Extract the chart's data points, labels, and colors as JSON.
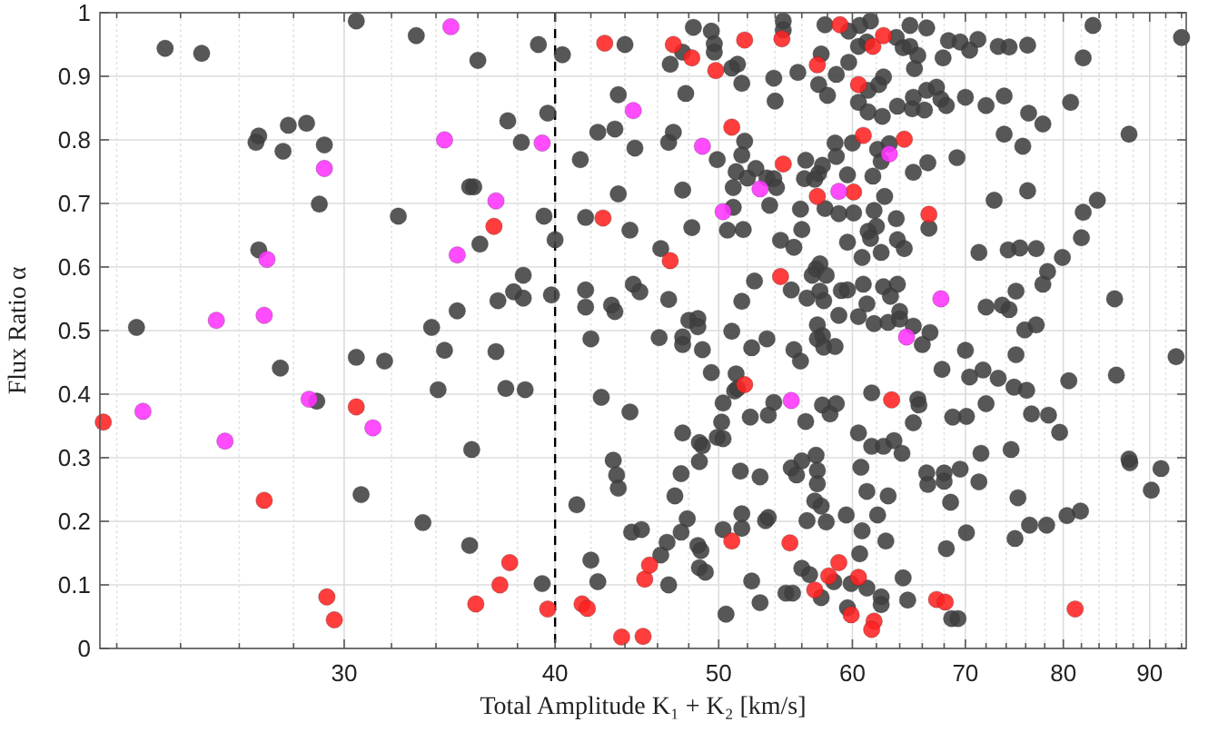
{
  "chart_data": {
    "type": "scatter",
    "xlabel": "Total Amplitude K₁ + K₂ [km/s]",
    "ylabel": "Flux Ratio α",
    "log": "x",
    "grid": true,
    "marker": "circle",
    "xlim": [
      21.5,
      94.6
    ],
    "ylim": [
      0,
      1
    ],
    "xticks": [
      {
        "value": 22,
        "label": null
      },
      {
        "value": 24,
        "label": null
      },
      {
        "value": 26,
        "label": null
      },
      {
        "value": 28,
        "label": null
      },
      30,
      {
        "value": 32,
        "label": null
      },
      {
        "value": 34,
        "label": null
      },
      {
        "value": 36,
        "label": null
      },
      {
        "value": 38,
        "label": null
      },
      40,
      {
        "value": 42,
        "label": null
      },
      {
        "value": 44,
        "label": null
      },
      {
        "value": 46,
        "label": null
      },
      {
        "value": 48,
        "label": null
      },
      50,
      {
        "value": 52,
        "label": null
      },
      {
        "value": 54,
        "label": null
      },
      {
        "value": 56,
        "label": null
      },
      {
        "value": 58,
        "label": null
      },
      60,
      {
        "value": 62,
        "label": null
      },
      {
        "value": 64,
        "label": null
      },
      {
        "value": 66,
        "label": null
      },
      {
        "value": 68,
        "label": null
      },
      70,
      {
        "value": 72,
        "label": null
      },
      {
        "value": 74,
        "label": null
      },
      {
        "value": 76,
        "label": null
      },
      {
        "value": 78,
        "label": null
      },
      80,
      {
        "value": 82,
        "label": null
      },
      {
        "value": 84,
        "label": null
      },
      {
        "value": 86,
        "label": null
      },
      {
        "value": 88,
        "label": null
      },
      90,
      {
        "value": 92,
        "label": null
      },
      {
        "value": 94,
        "label": null
      }
    ],
    "yticks": [
      0,
      0.1,
      0.2,
      0.3,
      0.4,
      0.5,
      0.6,
      0.7,
      0.8,
      0.9,
      1
    ],
    "ref_lines": [
      {
        "axis": "x",
        "value": 40,
        "line_style": "dashed",
        "color": "#000000"
      }
    ],
    "series": [
      {
        "color": "#404040",
        "x": [
          22.6,
          27.5,
          28.9,
          30.5,
          31.7,
          30.7,
          33.4,
          33.8,
          34.4,
          34.1,
          23.5,
          24.7,
          30.5,
          33.1,
          26.7,
          26.6,
          27.8,
          28.5,
          27.6,
          29.2,
          29.0,
          32.3,
          26.7,
          35.0,
          39.1,
          36.0,
          40.4,
          44.0,
          48.3,
          49.5,
          49.7,
          49.7,
          46.8,
          47.6,
          50.9,
          51.3,
          51.6,
          54.6,
          54.6,
          53.9,
          54.0,
          55.7,
          57.8,
          57.5,
          57.3,
          58.0,
          58.7,
          43.6,
          47.8,
          37.5,
          39.6,
          38.2,
          42.4,
          43.4,
          44.6,
          46.7,
          47.0,
          41.4,
          49.9,
          51.8,
          51.6,
          51.2,
          52.0,
          52.6,
          53.4,
          53.9,
          51.0,
          54.1,
          56.3,
          56.2,
          57.3,
          57.0,
          57.6,
          58.6,
          58.7,
          43.6,
          47.6,
          35.6,
          35.8,
          39.4,
          41.7,
          44.3,
          48.2,
          53.6,
          51.0,
          50.6,
          51.7,
          54.4,
          55.4,
          55.9,
          56.0,
          57.8,
          58.9,
          40.0,
          36.1,
          46.2,
          38.3,
          37.8,
          38.3,
          37.0,
          39.8,
          41.7,
          41.7,
          43.2,
          43.4,
          44.5,
          44.9,
          46.7,
          48.0,
          48.6,
          52.5,
          51.6,
          55.2,
          56.4,
          57.1,
          57.4,
          56.8,
          57.9,
          57.4,
          57.7,
          59.1,
          58.9,
          57.2,
          57.6,
          42.0,
          46.1,
          50.9,
          61.5,
          60.6,
          59.7,
          61.2,
          60.5,
          59.7,
          64.9,
          66.4,
          63.7,
          64.3,
          64.9,
          65.6,
          65.3,
          68.4,
          69.5,
          71.2,
          70.4,
          67.9,
          73.2,
          74.3,
          76.2,
          83.3,
          82.2,
          94.0,
          61.3,
          62.2,
          62.6,
          60.5,
          61.3,
          62.5,
          63.8,
          65.1,
          66.2,
          65.2,
          66.4,
          67.3,
          67.7,
          68.2,
          70.0,
          72.0,
          73.8,
          76.3,
          77.8,
          80.8,
          87.5,
          73.8,
          75.7,
          60.0,
          62.1,
          63.1,
          62.4,
          65.2,
          66.5,
          69.2,
          59.6,
          61.7,
          62.7,
          72.8,
          76.2,
          82.2,
          83.8,
          82.0,
          60.1,
          61.8,
          63.7,
          62.0,
          61.3,
          61.5,
          59.6,
          60.8,
          62.4,
          63.8,
          64.4,
          66.6,
          71.3,
          74.2,
          75.4,
          77.1,
          79.9,
          78.3,
          77.8,
          75.0,
          73.6,
          72.0,
          74.3,
          75.9,
          77.1,
          85.8,
          59.6,
          60.9,
          62.6,
          63.8,
          63.2,
          61.2,
          60.5,
          61.8,
          63.0,
          64.0,
          64.0,
          65.2,
          66.7,
          36.9,
          37.4,
          38.4,
          35.7,
          35.6,
          39.3,
          42.6,
          44.3,
          41.2,
          43.3,
          43.5,
          43.6,
          42.0,
          42.4,
          44.4,
          45.0,
          47.6,
          48.6,
          47.6,
          48.9,
          49.5,
          52.3,
          53.4,
          55.4,
          55.9,
          57.2,
          57.7,
          58.6,
          51.2,
          51.1,
          51.3,
          50.3,
          52.2,
          53.9,
          53.5,
          56.3,
          57.6,
          58.2,
          58.7,
          47.6,
          48.7,
          48.9,
          48.7,
          49.9,
          50.3,
          50.2,
          51.5,
          52.9,
          55.2,
          56.0,
          57.1,
          57.2,
          55.6,
          57.2,
          47.5,
          47.1,
          47.9,
          47.5,
          46.6,
          46.2,
          48.6,
          48.8,
          48.7,
          49.1,
          50.3,
          51.6,
          51.6,
          53.3,
          53.5,
          56.4,
          57.9,
          57.0,
          57.5,
          46.7,
          52.3,
          52.9,
          50.5,
          54.8,
          55.3,
          56.0,
          56.6,
          57.5,
          70.0,
          71.7,
          70.4,
          73.2,
          75.0,
          67.8,
          66.0,
          74.8,
          76.1,
          80.6,
          86.0,
          76.6,
          78.4,
          79.6,
          72.0,
          70.1,
          68.8,
          65.6,
          65.7,
          65.2,
          61.6,
          60.5,
          61.6,
          62.6,
          63.5,
          64.2,
          60.7,
          71.5,
          74.5,
          66.4,
          68.0,
          66.5,
          68.0,
          69.5,
          71.3,
          68.6,
          63.0,
          61.2,
          87.6,
          91.4,
          90.2,
          75.2,
          59.5,
          62.1,
          60.8,
          62.8,
          70.1,
          68.2,
          74.9,
          76.4,
          78.2,
          80.4,
          81.9,
          60.6,
          58.5,
          59.9,
          61.2,
          62.4,
          62.4,
          64.3,
          64.7,
          59.6,
          68.7,
          69.3,
          93.3,
          87.5
        ],
        "values": [
          0.505,
          0.441,
          0.389,
          0.458,
          0.452,
          0.242,
          0.198,
          0.505,
          0.469,
          0.407,
          0.944,
          0.936,
          0.987,
          0.964,
          0.806,
          0.796,
          0.823,
          0.826,
          0.782,
          0.792,
          0.699,
          0.68,
          0.627,
          0.531,
          0.95,
          0.925,
          0.934,
          0.95,
          0.977,
          0.971,
          0.951,
          0.938,
          0.919,
          0.938,
          0.913,
          0.919,
          0.889,
          0.987,
          0.973,
          0.897,
          0.861,
          0.906,
          0.981,
          0.935,
          0.887,
          0.87,
          0.903,
          0.871,
          0.873,
          0.83,
          0.842,
          0.796,
          0.812,
          0.817,
          0.787,
          0.796,
          0.812,
          0.769,
          0.769,
          0.798,
          0.776,
          0.75,
          0.74,
          0.755,
          0.74,
          0.739,
          0.725,
          0.725,
          0.768,
          0.739,
          0.747,
          0.738,
          0.76,
          0.795,
          0.774,
          0.715,
          0.721,
          0.726,
          0.726,
          0.68,
          0.678,
          0.658,
          0.662,
          0.697,
          0.694,
          0.658,
          0.659,
          0.642,
          0.631,
          0.691,
          0.659,
          0.692,
          0.684,
          0.643,
          0.636,
          0.629,
          0.587,
          0.561,
          0.551,
          0.547,
          0.556,
          0.564,
          0.537,
          0.54,
          0.53,
          0.573,
          0.561,
          0.549,
          0.516,
          0.519,
          0.578,
          0.546,
          0.564,
          0.551,
          0.597,
          0.605,
          0.587,
          0.587,
          0.562,
          0.547,
          0.563,
          0.524,
          0.509,
          0.492,
          0.487,
          0.489,
          0.499,
          0.987,
          0.98,
          0.971,
          0.954,
          0.947,
          0.922,
          0.98,
          0.976,
          0.961,
          0.945,
          0.947,
          0.933,
          0.912,
          0.956,
          0.954,
          0.958,
          0.941,
          0.929,
          0.947,
          0.946,
          0.949,
          0.98,
          0.929,
          0.961,
          0.878,
          0.887,
          0.899,
          0.859,
          0.844,
          0.837,
          0.853,
          0.849,
          0.847,
          0.867,
          0.878,
          0.883,
          0.864,
          0.854,
          0.867,
          0.854,
          0.869,
          0.842,
          0.825,
          0.859,
          0.809,
          0.809,
          0.79,
          0.795,
          0.785,
          0.794,
          0.766,
          0.749,
          0.764,
          0.772,
          0.745,
          0.743,
          0.711,
          0.705,
          0.72,
          0.686,
          0.705,
          0.646,
          0.685,
          0.689,
          0.676,
          0.664,
          0.656,
          0.645,
          0.639,
          0.615,
          0.623,
          0.643,
          0.629,
          0.661,
          0.623,
          0.627,
          0.63,
          0.629,
          0.615,
          0.593,
          0.573,
          0.562,
          0.54,
          0.537,
          0.533,
          0.501,
          0.509,
          0.55,
          0.564,
          0.573,
          0.569,
          0.573,
          0.554,
          0.542,
          0.522,
          0.511,
          0.513,
          0.53,
          0.518,
          0.507,
          0.497,
          0.467,
          0.409,
          0.407,
          0.313,
          0.162,
          0.102,
          0.395,
          0.372,
          0.226,
          0.296,
          0.273,
          0.252,
          0.139,
          0.105,
          0.183,
          0.187,
          0.49,
          0.506,
          0.478,
          0.47,
          0.434,
          0.473,
          0.487,
          0.47,
          0.452,
          0.487,
          0.474,
          0.475,
          0.432,
          0.405,
          0.409,
          0.386,
          0.364,
          0.387,
          0.367,
          0.357,
          0.383,
          0.369,
          0.385,
          0.339,
          0.324,
          0.319,
          0.294,
          0.332,
          0.33,
          0.356,
          0.279,
          0.27,
          0.284,
          0.295,
          0.304,
          0.28,
          0.273,
          0.259,
          0.275,
          0.24,
          0.204,
          0.183,
          0.167,
          0.147,
          0.162,
          0.154,
          0.127,
          0.12,
          0.187,
          0.189,
          0.212,
          0.201,
          0.206,
          0.201,
          0.199,
          0.232,
          0.224,
          0.1,
          0.106,
          0.072,
          0.054,
          0.087,
          0.087,
          0.126,
          0.116,
          0.08,
          0.469,
          0.438,
          0.427,
          0.425,
          0.462,
          0.439,
          0.478,
          0.411,
          0.406,
          0.421,
          0.43,
          0.369,
          0.367,
          0.34,
          0.385,
          0.365,
          0.364,
          0.392,
          0.383,
          0.355,
          0.402,
          0.339,
          0.318,
          0.318,
          0.327,
          0.307,
          0.285,
          0.307,
          0.313,
          0.276,
          0.276,
          0.258,
          0.263,
          0.282,
          0.262,
          0.23,
          0.24,
          0.247,
          0.292,
          0.283,
          0.249,
          0.237,
          0.21,
          0.21,
          0.185,
          0.169,
          0.182,
          0.157,
          0.173,
          0.194,
          0.194,
          0.209,
          0.216,
          0.149,
          0.105,
          0.102,
          0.095,
          0.081,
          0.069,
          0.111,
          0.076,
          0.064,
          0.047,
          0.047,
          0.459,
          0.298
        ]
      },
      {
        "color": "#ff2222",
        "x": [
          21.6,
          26.9,
          29.3,
          29.6,
          30.5,
          42.8,
          47.0,
          48.2,
          49.8,
          51.8,
          54.5,
          57.2,
          59.0,
          50.9,
          54.6,
          57.2,
          36.8,
          42.7,
          46.8,
          54.4,
          61.7,
          62.6,
          60.5,
          60.9,
          64.4,
          60.1,
          66.6,
          35.9,
          37.1,
          37.6,
          39.6,
          41.5,
          41.8,
          43.8,
          45.1,
          45.2,
          45.5,
          50.9,
          51.8,
          55.1,
          57.0,
          58.1,
          58.9,
          63.3,
          60.5,
          59.9,
          61.8,
          61.6,
          67.3,
          68.1,
          81.3
        ],
        "values": [
          0.356,
          0.233,
          0.081,
          0.045,
          0.38,
          0.952,
          0.95,
          0.929,
          0.909,
          0.957,
          0.959,
          0.918,
          0.981,
          0.82,
          0.762,
          0.711,
          0.664,
          0.677,
          0.61,
          0.585,
          0.947,
          0.964,
          0.887,
          0.807,
          0.801,
          0.718,
          0.683,
          0.07,
          0.1,
          0.135,
          0.062,
          0.07,
          0.063,
          0.018,
          0.019,
          0.109,
          0.131,
          0.169,
          0.415,
          0.166,
          0.092,
          0.114,
          0.135,
          0.391,
          0.112,
          0.053,
          0.043,
          0.03,
          0.077,
          0.073,
          0.062
        ]
      },
      {
        "color": "#ff33ff",
        "x": [
          22.8,
          25.5,
          28.6,
          31.2,
          34.7,
          34.4,
          29.2,
          27.0,
          26.9,
          25.2,
          35.0,
          39.3,
          44.5,
          48.9,
          52.9,
          50.3,
          36.9,
          58.9,
          63.1,
          67.7,
          64.6,
          55.2
        ],
        "values": [
          0.373,
          0.326,
          0.392,
          0.347,
          0.978,
          0.8,
          0.755,
          0.612,
          0.524,
          0.516,
          0.619,
          0.795,
          0.846,
          0.79,
          0.723,
          0.687,
          0.704,
          0.719,
          0.778,
          0.55,
          0.49,
          0.39
        ]
      }
    ]
  }
}
